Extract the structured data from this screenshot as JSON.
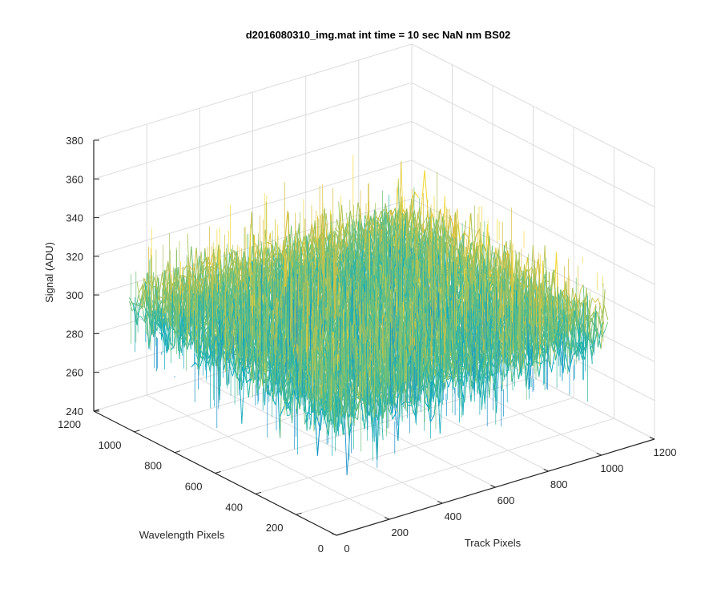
{
  "chart_data": {
    "type": "surface",
    "title": "d2016080310_img.mat int time = 10 sec  NaN nm BS02",
    "xlabel": "Track Pixels",
    "ylabel": "Wavelength Pixels",
    "zlabel": "Signal (ADU)",
    "xlim": [
      0,
      1200
    ],
    "ylim": [
      0,
      1200
    ],
    "zlim": [
      240,
      380
    ],
    "x_ticks": [
      "0",
      "200",
      "400",
      "600",
      "800",
      "1000",
      "1200"
    ],
    "y_ticks": [
      "0",
      "200",
      "400",
      "600",
      "800",
      "1000",
      "1200"
    ],
    "z_ticks": [
      "240",
      "260",
      "280",
      "300",
      "320",
      "340",
      "360",
      "380"
    ],
    "x_tick_values": [
      0,
      200,
      400,
      600,
      800,
      1000,
      1200
    ],
    "y_tick_values": [
      0,
      200,
      400,
      600,
      800,
      1000,
      1200
    ],
    "z_tick_values": [
      240,
      260,
      280,
      300,
      320,
      340,
      360,
      380
    ],
    "surface_extent": {
      "x": [
        0,
        1024
      ],
      "y": [
        0,
        1024
      ]
    },
    "signal_mean": 305,
    "signal_range": [
      250,
      370
    ],
    "colormap": [
      "#1a8fc8",
      "#14a9be",
      "#32b6a2",
      "#6dbf7c",
      "#a9c35a",
      "#d9c03f",
      "#f1d83c"
    ],
    "grid": true
  }
}
